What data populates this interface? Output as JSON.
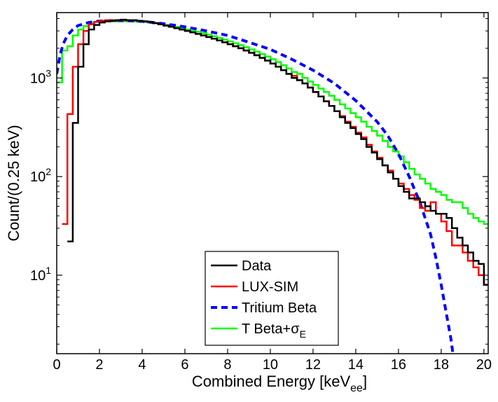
{
  "chart_data": {
    "type": "line",
    "title": "",
    "xlabel": "Combined Energy [keV",
    "xlabel_sub": "ee",
    "xlabel_suffix": "]",
    "ylabel": "Count/(0.25 keV)",
    "xlim": [
      0,
      20.2
    ],
    "ylim": [
      1.6,
      4600
    ],
    "yscale": "log",
    "grid": false,
    "legend_position": "bottom-center",
    "x_ticks": [
      0,
      2,
      4,
      6,
      8,
      10,
      12,
      14,
      16,
      18,
      20
    ],
    "y_ticks": [
      {
        "value": 10,
        "base": "10",
        "exp": "1"
      },
      {
        "value": 100,
        "base": "10",
        "exp": "2"
      },
      {
        "value": 1000,
        "base": "10",
        "exp": "3"
      }
    ],
    "series": [
      {
        "name": "Data",
        "label_base": "Data",
        "label_sub": "",
        "color": "#000000",
        "style": "step",
        "step_width": 0.25,
        "x_start": 0.5,
        "values": [
          22,
          350,
          1300,
          2200,
          3100,
          3450,
          3650,
          3750,
          3800,
          3850,
          3900,
          3850,
          3850,
          3800,
          3750,
          3700,
          3600,
          3500,
          3400,
          3300,
          3200,
          3100,
          3000,
          2900,
          2800,
          2700,
          2600,
          2500,
          2400,
          2300,
          2200,
          2100,
          2000,
          1900,
          1800,
          1700,
          1600,
          1500,
          1400,
          1300,
          1200,
          1100,
          1000,
          950,
          880,
          800,
          720,
          650,
          580,
          520,
          460,
          400,
          350,
          310,
          270,
          240,
          200,
          175,
          150,
          130,
          110,
          95,
          80,
          70,
          60,
          60,
          55,
          50,
          45,
          42,
          42,
          38,
          30,
          24,
          20,
          17,
          14,
          13,
          8,
          6,
          4
        ]
      },
      {
        "name": "LUX-SIM",
        "label_base": "LUX-SIM",
        "label_sub": "",
        "color": "#ff0000",
        "style": "step",
        "step_width": 0.25,
        "x_start": 0.25,
        "values": [
          33,
          430,
          1300,
          2200,
          3000,
          3500,
          3700,
          3800,
          3850,
          3850,
          3850,
          3850,
          3850,
          3850,
          3800,
          3750,
          3700,
          3600,
          3500,
          3400,
          3300,
          3200,
          3100,
          3000,
          2900,
          2800,
          2700,
          2600,
          2500,
          2400,
          2300,
          2200,
          2100,
          2000,
          1900,
          1800,
          1700,
          1600,
          1500,
          1400,
          1300,
          1200,
          1100,
          1050,
          950,
          880,
          800,
          720,
          650,
          580,
          520,
          460,
          410,
          360,
          320,
          280,
          250,
          210,
          180,
          155,
          130,
          115,
          95,
          85,
          75,
          65,
          58,
          48,
          45,
          55,
          42,
          35,
          28,
          20,
          20,
          17,
          14,
          12,
          10,
          8,
          6,
          6
        ]
      },
      {
        "name": "Tritium Beta",
        "label_base": "Tritium Beta",
        "label_sub": "",
        "color": "#0000ff",
        "style": "dashed",
        "x": [
          0,
          0.15,
          0.3,
          0.5,
          0.75,
          1,
          1.5,
          2,
          2.5,
          3,
          3.5,
          4,
          5,
          6,
          7,
          8,
          9,
          10,
          11,
          12,
          13,
          14,
          15,
          15.5,
          16,
          16.5,
          17,
          17.5,
          17.75,
          18,
          18.25,
          18.45,
          18.55
        ],
        "values": [
          1100,
          1700,
          2200,
          2700,
          3100,
          3400,
          3650,
          3780,
          3820,
          3820,
          3800,
          3750,
          3550,
          3300,
          3000,
          2700,
          2300,
          1950,
          1550,
          1200,
          880,
          590,
          360,
          260,
          170,
          100,
          55,
          26,
          15,
          8,
          4,
          2.3,
          1.6
        ]
      },
      {
        "name": "T Beta+σE",
        "label_base": "T Beta+σ",
        "label_sub": "E",
        "color": "#00ff00",
        "style": "step",
        "step_width": 0.25,
        "x_start": 0,
        "values": [
          900,
          1900,
          2100,
          2700,
          3100,
          3350,
          3550,
          3700,
          3750,
          3750,
          3750,
          3750,
          3750,
          3750,
          3750,
          3700,
          3700,
          3650,
          3600,
          3550,
          3450,
          3350,
          3300,
          3200,
          3100,
          3000,
          2950,
          2850,
          2750,
          2650,
          2550,
          2450,
          2350,
          2250,
          2150,
          2050,
          1950,
          1850,
          1750,
          1650,
          1550,
          1450,
          1350,
          1250,
          1150,
          1100,
          1000,
          920,
          850,
          780,
          720,
          660,
          600,
          540,
          490,
          440,
          400,
          360,
          320,
          290,
          260,
          230,
          200,
          180,
          160,
          140,
          120,
          105,
          95,
          85,
          75,
          70,
          65,
          58,
          55,
          55,
          48,
          42,
          38,
          35,
          33,
          30,
          25,
          20,
          16,
          13,
          11,
          9,
          9
        ]
      }
    ]
  }
}
